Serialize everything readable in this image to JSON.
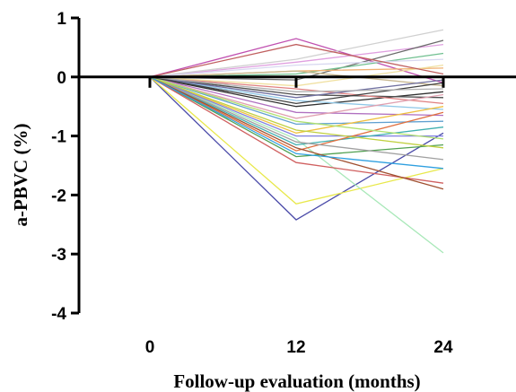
{
  "chart_data": {
    "type": "line",
    "xlabel": "Follow-up evaluation (months)",
    "ylabel": "a-PBVC (%)",
    "x": [
      0,
      12,
      24
    ],
    "x_tick_labels": [
      "0",
      "12",
      "24"
    ],
    "ylim": [
      -4,
      1
    ],
    "y_ticks": [
      1,
      0,
      -1,
      -2,
      -3,
      -4
    ],
    "grid": false,
    "legend": "none",
    "series": [
      {
        "color": "#4a4aa8",
        "values": [
          0,
          -2.42,
          -0.95
        ]
      },
      {
        "color": "#e8e84a",
        "values": [
          0,
          -2.15,
          -1.55
        ]
      },
      {
        "color": "#a8e8b8",
        "values": [
          0,
          -1.05,
          -2.98
        ]
      },
      {
        "color": "#c050b0",
        "values": [
          0,
          0.65,
          -0.1
        ]
      },
      {
        "color": "#e0a0e0",
        "values": [
          0,
          0.25,
          0.55
        ]
      },
      {
        "color": "#d0d0d0",
        "values": [
          0,
          0.3,
          0.8
        ]
      },
      {
        "color": "#6a6a6a",
        "values": [
          0,
          -0.05,
          0.62
        ]
      },
      {
        "color": "#70c090",
        "values": [
          0,
          0.05,
          0.4
        ]
      },
      {
        "color": "#f0b070",
        "values": [
          0,
          0.1,
          0.15
        ]
      },
      {
        "color": "#c8b890",
        "values": [
          0,
          0.1,
          -0.15
        ]
      },
      {
        "color": "#303030",
        "values": [
          0,
          -0.5,
          -0.25
        ]
      },
      {
        "color": "#505050",
        "values": [
          0,
          -0.3,
          -0.35
        ]
      },
      {
        "color": "#e08080",
        "values": [
          0,
          -0.2,
          -0.45
        ]
      },
      {
        "color": "#90c8e8",
        "values": [
          0,
          -0.4,
          -0.55
        ]
      },
      {
        "color": "#b070c0",
        "values": [
          0,
          -0.6,
          -0.65
        ]
      },
      {
        "color": "#60a0d0",
        "values": [
          0,
          -0.8,
          -0.75
        ]
      },
      {
        "color": "#f0c040",
        "values": [
          0,
          -0.95,
          -0.5
        ]
      },
      {
        "color": "#8080e0",
        "values": [
          0,
          -1.0,
          -1.0
        ]
      },
      {
        "color": "#40b0b0",
        "values": [
          0,
          -1.15,
          -0.85
        ]
      },
      {
        "color": "#e07040",
        "values": [
          0,
          -1.25,
          -0.6
        ]
      },
      {
        "color": "#50a050",
        "values": [
          0,
          -1.35,
          -1.15
        ]
      },
      {
        "color": "#d06060",
        "values": [
          0,
          -1.45,
          -1.8
        ]
      },
      {
        "color": "#a0a0a0",
        "values": [
          0,
          -1.1,
          -1.4
        ]
      },
      {
        "color": "#c0d040",
        "values": [
          0,
          -0.9,
          -1.2
        ]
      },
      {
        "color": "#e0a0b0",
        "values": [
          0,
          -0.7,
          -0.3
        ]
      },
      {
        "color": "#7070a0",
        "values": [
          0,
          -0.35,
          -0.05
        ]
      },
      {
        "color": "#a05030",
        "values": [
          0,
          -1.2,
          -1.9
        ]
      },
      {
        "color": "#30a0e0",
        "values": [
          0,
          -1.3,
          -1.55
        ]
      },
      {
        "color": "#b0e070",
        "values": [
          0,
          -0.75,
          -1.05
        ]
      },
      {
        "color": "#f0e0a0",
        "values": [
          0,
          -0.15,
          0.2
        ]
      },
      {
        "color": "#d8d8f0",
        "values": [
          0,
          0.2,
          0.3
        ]
      },
      {
        "color": "#404040",
        "values": [
          0,
          -0.45,
          -0.1
        ]
      },
      {
        "color": "#c06060",
        "values": [
          0,
          0.55,
          0.05
        ]
      },
      {
        "color": "#b0b0b0",
        "values": [
          0,
          -0.25,
          -0.2
        ]
      }
    ]
  }
}
